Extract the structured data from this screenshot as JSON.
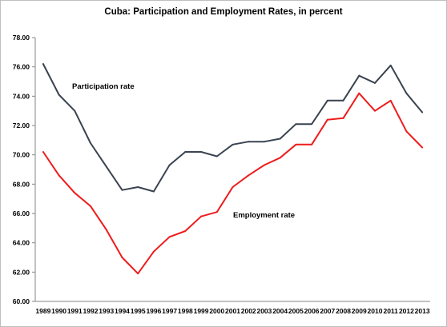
{
  "chart_data": {
    "type": "line",
    "title": "Cuba: Participation and Employment Rates, in percent",
    "xlabel": "",
    "ylabel": "",
    "x": [
      "1989",
      "1990",
      "1991",
      "1992",
      "1993",
      "1994",
      "1995",
      "1996",
      "1997",
      "1998",
      "1999",
      "2000",
      "2001",
      "2002",
      "2003",
      "2004",
      "2005",
      "2006",
      "2007",
      "2008",
      "2009",
      "2010",
      "2011",
      "2012",
      "2013"
    ],
    "ylim": [
      60,
      78
    ],
    "yticks": [
      "60.00",
      "62.00",
      "64.00",
      "66.00",
      "68.00",
      "70.00",
      "72.00",
      "74.00",
      "76.00",
      "78.00"
    ],
    "grid": false,
    "series": [
      {
        "name": "Participation rate",
        "color": "#3a4350",
        "values": [
          76.2,
          74.1,
          73.0,
          70.8,
          69.2,
          67.6,
          67.8,
          67.5,
          69.3,
          70.2,
          70.2,
          69.9,
          70.7,
          70.9,
          70.9,
          71.1,
          72.1,
          72.1,
          73.7,
          73.7,
          75.4,
          74.9,
          76.1,
          74.2,
          72.9
        ]
      },
      {
        "name": "Employment rate",
        "color": "#ee1c1c",
        "values": [
          70.2,
          68.6,
          67.4,
          66.5,
          64.9,
          63.0,
          61.9,
          63.4,
          64.4,
          64.8,
          65.8,
          66.1,
          67.8,
          68.6,
          69.3,
          69.8,
          70.7,
          70.7,
          72.4,
          72.5,
          74.2,
          73.0,
          73.7,
          71.6,
          70.5
        ]
      }
    ]
  }
}
